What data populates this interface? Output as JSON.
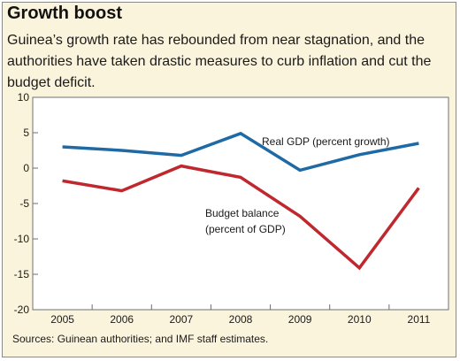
{
  "header": {
    "title": "Growth boost",
    "subtitle": "Guinea’s growth rate has rebounded from near stagnation, and the authorities have taken drastic measures to curb inflation and cut the budget deficit."
  },
  "footer": {
    "source": "Sources: Guinean authorities; and IMF staff estimates."
  },
  "chart_data": {
    "type": "line",
    "x": [
      "2005",
      "2006",
      "2007",
      "2008",
      "2009",
      "2010",
      "2011"
    ],
    "yticks": [
      10,
      5,
      0,
      -5,
      -10,
      -15,
      -20
    ],
    "ylim": [
      -20,
      10
    ],
    "grid": false,
    "series": [
      {
        "name": "Real GDP (percent growth)",
        "color": "#1f6aa5",
        "values": [
          3.0,
          2.5,
          1.8,
          4.9,
          -0.3,
          1.9,
          3.5
        ]
      },
      {
        "name": "Budget balance (percent of GDP)",
        "label_lines": [
          "Budget balance",
          "(percent of GDP)"
        ],
        "color": "#c0282f",
        "values": [
          -1.8,
          -3.2,
          0.3,
          -1.3,
          -6.8,
          -14.1,
          -2.8
        ]
      }
    ]
  }
}
